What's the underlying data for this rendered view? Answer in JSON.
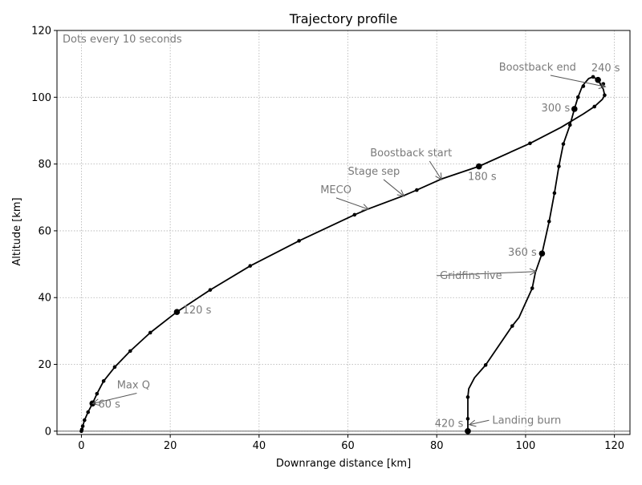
{
  "chart_data": {
    "type": "line",
    "title": "Trajectory profile",
    "xlabel": "Downrange distance [km]",
    "ylabel": "Altitude [km]",
    "xlim": [
      -5.5,
      123.5
    ],
    "ylim": [
      -1,
      120
    ],
    "xticks": [
      0,
      20,
      40,
      60,
      80,
      100,
      120
    ],
    "yticks": [
      0,
      20,
      40,
      60,
      80,
      100,
      120
    ],
    "grid": true,
    "ground_line": 0,
    "note": "Dots every 10 seconds",
    "colors": {
      "line": "#000000",
      "annotation": "#7a7a7a",
      "grid": "#b0b0b0",
      "ground": "#7a7a7a"
    },
    "series": [
      {
        "points": [
          [
            0,
            0
          ],
          [
            0.1,
            0.5
          ],
          [
            0.3,
            1.5
          ],
          [
            0.7,
            3.3
          ],
          [
            1.5,
            5.7
          ],
          [
            2.5,
            8.3
          ],
          [
            3.5,
            11.2
          ],
          [
            5,
            15
          ],
          [
            7.5,
            19.2
          ],
          [
            11,
            24
          ],
          [
            15.5,
            29.5
          ],
          [
            21.5,
            35.7
          ],
          [
            29,
            42.3
          ],
          [
            38,
            49.5
          ],
          [
            49,
            57
          ],
          [
            61.5,
            64.8
          ],
          [
            64.5,
            66.5
          ],
          [
            72.5,
            70.5
          ],
          [
            75.5,
            72.2
          ],
          [
            81,
            75.5
          ],
          [
            89.5,
            79.3
          ],
          [
            101,
            86.2
          ],
          [
            108,
            91
          ],
          [
            113,
            95
          ],
          [
            115.5,
            97.2
          ],
          [
            117.3,
            99.4
          ],
          [
            117.8,
            100.6
          ],
          [
            117.5,
            102.4
          ],
          [
            116.8,
            104
          ],
          [
            116.3,
            105.2
          ],
          [
            115.2,
            106.1
          ],
          [
            114.2,
            105.6
          ],
          [
            112.8,
            103.4
          ],
          [
            111.8,
            100
          ],
          [
            111,
            96.5
          ],
          [
            110,
            91.7
          ],
          [
            108.5,
            86
          ],
          [
            107.5,
            79.3
          ],
          [
            106.5,
            71.3
          ],
          [
            105.3,
            62.8
          ],
          [
            103.7,
            53.2
          ],
          [
            102.2,
            47.5
          ],
          [
            101.5,
            42.8
          ],
          [
            98.5,
            34
          ],
          [
            97,
            31.5
          ],
          [
            91,
            19.8
          ],
          [
            88.5,
            16
          ],
          [
            87.2,
            12.7
          ],
          [
            87,
            10.2
          ],
          [
            87,
            3.7
          ],
          [
            87,
            0
          ]
        ],
        "dots_small": [
          [
            0,
            0
          ],
          [
            0.1,
            0.5
          ],
          [
            0.3,
            1.5
          ],
          [
            0.7,
            3.3
          ],
          [
            1.5,
            5.7
          ],
          [
            3.5,
            11.2
          ],
          [
            5,
            15
          ],
          [
            7.5,
            19.2
          ],
          [
            11,
            24
          ],
          [
            15.5,
            29.5
          ],
          [
            29,
            42.3
          ],
          [
            38,
            49.5
          ],
          [
            49,
            57
          ],
          [
            61.5,
            64.8
          ],
          [
            75.5,
            72.2
          ],
          [
            101,
            86.2
          ],
          [
            115.5,
            97.2
          ],
          [
            117.8,
            100.6
          ],
          [
            117.5,
            104
          ],
          [
            115.2,
            106.1
          ],
          [
            113,
            103.3
          ],
          [
            111.8,
            100
          ],
          [
            110,
            91.7
          ],
          [
            108.5,
            86
          ],
          [
            107.5,
            79.3
          ],
          [
            106.5,
            71.3
          ],
          [
            105.3,
            62.8
          ],
          [
            101.5,
            42.8
          ],
          [
            97,
            31.5
          ],
          [
            91,
            19.8
          ],
          [
            87,
            10.2
          ],
          [
            87,
            3.7
          ]
        ],
        "dots_large": [
          [
            2.5,
            8.3
          ],
          [
            21.5,
            35.7
          ],
          [
            89.5,
            79.3
          ],
          [
            116.3,
            105.2
          ],
          [
            111,
            96.5
          ],
          [
            103.7,
            53.2
          ],
          [
            87,
            0
          ]
        ]
      }
    ],
    "annotations": [
      {
        "text": "60 s",
        "x": 3.8,
        "y": 7,
        "anchor": "start"
      },
      {
        "text": "120 s",
        "x": 22.8,
        "y": 35.2,
        "anchor": "start"
      },
      {
        "text": "180 s",
        "x": 87,
        "y": 75.2,
        "anchor": "start"
      },
      {
        "text": "240 s",
        "x": 114.8,
        "y": 107.8,
        "anchor": "start"
      },
      {
        "text": "300 s",
        "x": 110,
        "y": 95.8,
        "anchor": "end"
      },
      {
        "text": "360 s",
        "x": 102.5,
        "y": 52.5,
        "anchor": "end"
      },
      {
        "text": "420 s",
        "x": 86,
        "y": 1.3,
        "anchor": "end"
      },
      {
        "text": "Max Q",
        "x": 8,
        "y": 12.8,
        "anchor": "start",
        "arrow_to": [
          2.7,
          8.3
        ]
      },
      {
        "text": "MECO",
        "x": 53.8,
        "y": 71.3,
        "anchor": "start",
        "arrow_to": [
          64.5,
          66.5
        ]
      },
      {
        "text": "Stage sep",
        "x": 60,
        "y": 76.8,
        "anchor": "start",
        "arrow_to": [
          72.5,
          70.5
        ]
      },
      {
        "text": "Boostback start",
        "x": 65,
        "y": 82.3,
        "anchor": "start",
        "arrow_to": [
          81,
          75.5
        ]
      },
      {
        "text": "Boostback end",
        "x": 94,
        "y": 108,
        "anchor": "start",
        "arrow_to": [
          117.8,
          103.2
        ]
      },
      {
        "text": "Gridfins live",
        "x": 80.7,
        "y": 45.6,
        "anchor": "start",
        "arrow_to": [
          102.2,
          47.8
        ]
      },
      {
        "text": "Landing burn",
        "x": 92.5,
        "y": 2.3,
        "anchor": "start",
        "arrow_to": [
          87.5,
          2
        ]
      }
    ]
  }
}
